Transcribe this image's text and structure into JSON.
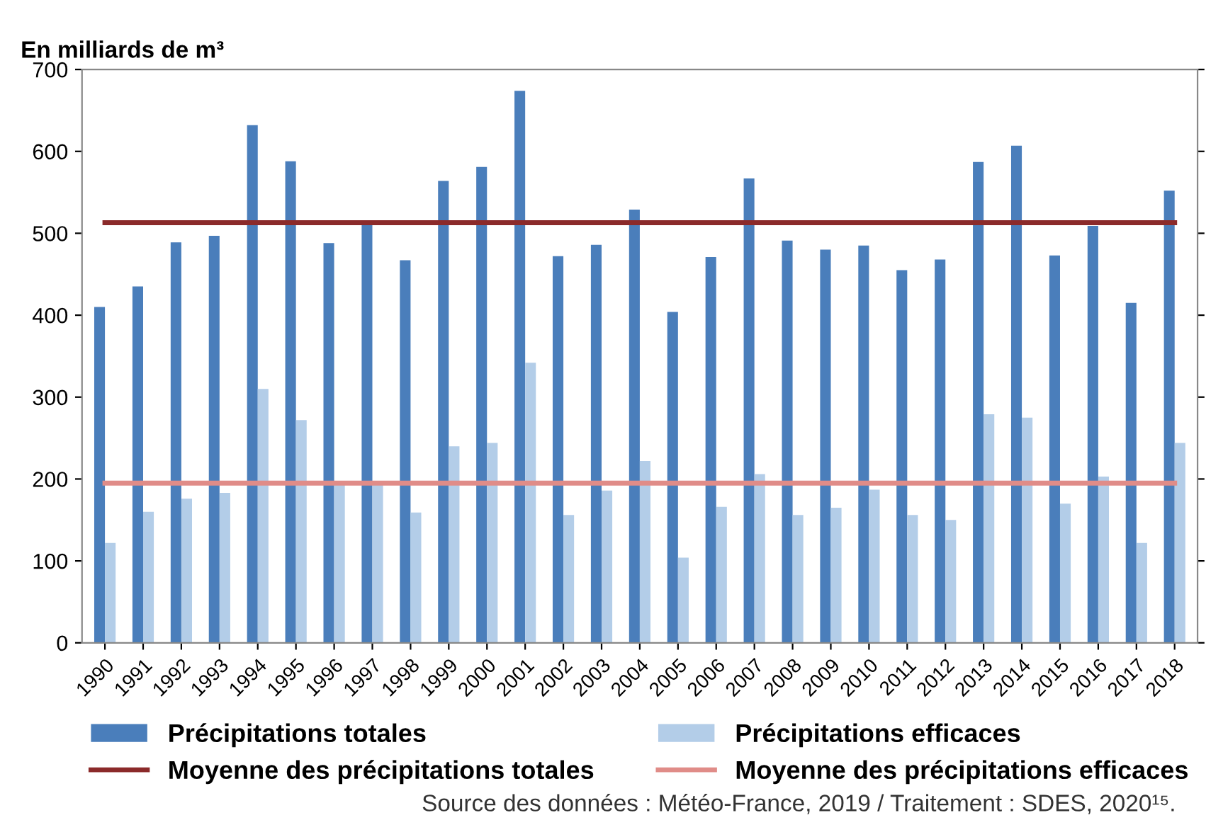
{
  "chart_data": {
    "type": "bar",
    "ylabel": "En milliards de m³",
    "categories": [
      "1990",
      "1991",
      "1992",
      "1993",
      "1994",
      "1995",
      "1996",
      "1997",
      "1998",
      "1999",
      "2000",
      "2001",
      "2002",
      "2003",
      "2004",
      "2005",
      "2006",
      "2007",
      "2008",
      "2009",
      "2010",
      "2011",
      "2012",
      "2013",
      "2014",
      "2015",
      "2016",
      "2017",
      "2018"
    ],
    "series": [
      {
        "name": "Précipitations totales",
        "color": "#4a7ebb",
        "values": [
          410,
          435,
          489,
          497,
          632,
          588,
          488,
          512,
          467,
          564,
          581,
          674,
          472,
          486,
          529,
          404,
          471,
          567,
          491,
          480,
          485,
          455,
          468,
          587,
          607,
          473,
          509,
          415,
          552
        ]
      },
      {
        "name": "Précipitations efficaces",
        "color": "#b3cde8",
        "values": [
          122,
          160,
          176,
          183,
          310,
          272,
          193,
          193,
          159,
          240,
          244,
          342,
          156,
          186,
          222,
          104,
          166,
          206,
          156,
          165,
          187,
          156,
          150,
          279,
          275,
          170,
          203,
          122,
          244
        ]
      },
      {
        "name": "Moyenne des précipitations totales",
        "type": "line",
        "color": "#8b2a2a",
        "values": [
          513,
          513,
          513,
          513,
          513,
          513,
          513,
          513,
          513,
          513,
          513,
          513,
          513,
          513,
          513,
          513,
          513,
          513,
          513,
          513,
          513,
          513,
          513,
          513,
          513,
          513,
          513,
          513,
          513
        ]
      },
      {
        "name": "Moyenne des précipitations efficaces",
        "type": "line",
        "color": "#e08c88",
        "values": [
          195,
          195,
          195,
          195,
          195,
          195,
          195,
          195,
          195,
          195,
          195,
          195,
          195,
          195,
          195,
          195,
          195,
          195,
          195,
          195,
          195,
          195,
          195,
          195,
          195,
          195,
          195,
          195,
          195
        ]
      }
    ],
    "ylim": [
      0,
      700
    ],
    "yticks": [
      0,
      100,
      200,
      300,
      400,
      500,
      600,
      700
    ],
    "grid": false,
    "legend": "bottom",
    "annotations": [
      "Source des données : Météo-France, 2019 / Traitement : SDES, 2020¹⁵."
    ]
  }
}
